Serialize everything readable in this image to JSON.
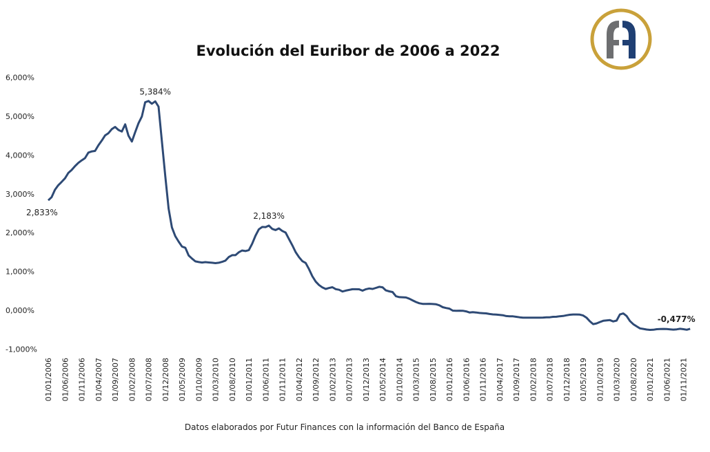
{
  "title": "Evolución del Euribor de 2006 a 2022",
  "source": "Datos elaborados por Futur Finances con la información del Banco de España",
  "logo": {
    "text": "FA",
    "colors": {
      "ring": "#c9a13a",
      "left": "#6d6e70",
      "right": "#1f3f73"
    }
  },
  "chart_data": {
    "type": "line",
    "title": "Evolución del Euribor de 2006 a 2022",
    "xlabel": "",
    "ylabel": "",
    "ylim": [
      -1,
      6
    ],
    "y_ticks": [
      "6,000%",
      "5,000%",
      "4,000%",
      "3,000%",
      "2,000%",
      "1,000%",
      "0,000%",
      "-1,000%"
    ],
    "x_ticks": [
      "01/01/2006",
      "01/06/2006",
      "01/11/2006",
      "01/04/2007",
      "01/09/2007",
      "01/02/2008",
      "01/07/2008",
      "01/12/2008",
      "01/05/2009",
      "01/10/2009",
      "01/03/2010",
      "01/08/2010",
      "01/01/2011",
      "01/06/2011",
      "01/11/2011",
      "01/04/2012",
      "01/09/2012",
      "01/02/2013",
      "01/07/2013",
      "01/12/2013",
      "01/05/2014",
      "01/10/2014",
      "01/03/2015",
      "01/08/2015",
      "01/01/2016",
      "01/06/2016",
      "01/11/2016",
      "01/04/2017",
      "01/09/2017",
      "01/02/2018",
      "01/07/2018",
      "01/12/2018",
      "01/05/2019",
      "01/10/2019",
      "01/03/2020",
      "01/08/2020",
      "01/01/2021",
      "01/06/2021",
      "01/11/2021"
    ],
    "x_start": "01/01/2006",
    "x_step": "monthly",
    "grid": false,
    "line_color": "#2e4a75",
    "values": [
      2.833,
      2.914,
      3.105,
      3.221,
      3.308,
      3.401,
      3.539,
      3.615,
      3.715,
      3.799,
      3.864,
      3.921,
      4.064,
      4.094,
      4.106,
      4.253,
      4.373,
      4.505,
      4.564,
      4.666,
      4.725,
      4.647,
      4.607,
      4.793,
      4.498,
      4.349,
      4.59,
      4.82,
      4.994,
      5.361,
      5.393,
      5.323,
      5.384,
      5.248,
      4.346,
      3.452,
      2.622,
      2.135,
      1.909,
      1.771,
      1.644,
      1.61,
      1.412,
      1.334,
      1.261,
      1.243,
      1.231,
      1.242,
      1.232,
      1.225,
      1.215,
      1.225,
      1.249,
      1.281,
      1.373,
      1.421,
      1.42,
      1.495,
      1.541,
      1.526,
      1.55,
      1.714,
      1.924,
      2.086,
      2.147,
      2.144,
      2.183,
      2.097,
      2.067,
      2.11,
      2.044,
      2.004,
      1.837,
      1.678,
      1.499,
      1.368,
      1.266,
      1.219,
      1.061,
      0.877,
      0.74,
      0.65,
      0.588,
      0.549,
      0.575,
      0.594,
      0.545,
      0.528,
      0.484,
      0.507,
      0.525,
      0.542,
      0.543,
      0.541,
      0.506,
      0.543,
      0.562,
      0.549,
      0.577,
      0.604,
      0.592,
      0.513,
      0.488,
      0.469,
      0.362,
      0.338,
      0.335,
      0.329,
      0.298,
      0.255,
      0.212,
      0.18,
      0.165,
      0.163,
      0.167,
      0.161,
      0.154,
      0.128,
      0.079,
      0.059,
      0.042,
      -0.008,
      -0.012,
      -0.01,
      -0.013,
      -0.028,
      -0.056,
      -0.048,
      -0.057,
      -0.069,
      -0.074,
      -0.08,
      -0.095,
      -0.106,
      -0.11,
      -0.119,
      -0.127,
      -0.149,
      -0.154,
      -0.156,
      -0.168,
      -0.18,
      -0.189,
      -0.19,
      -0.189,
      -0.191,
      -0.191,
      -0.19,
      -0.188,
      -0.181,
      -0.18,
      -0.169,
      -0.166,
      -0.154,
      -0.147,
      -0.129,
      -0.116,
      -0.108,
      -0.109,
      -0.112,
      -0.134,
      -0.19,
      -0.283,
      -0.356,
      -0.339,
      -0.304,
      -0.272,
      -0.261,
      -0.253,
      -0.288,
      -0.266,
      -0.108,
      -0.081,
      -0.147,
      -0.279,
      -0.359,
      -0.415,
      -0.466,
      -0.481,
      -0.497,
      -0.505,
      -0.501,
      -0.487,
      -0.484,
      -0.481,
      -0.484,
      -0.491,
      -0.498,
      -0.492,
      -0.477,
      -0.487,
      -0.502,
      -0.477
    ],
    "annotations": [
      {
        "text": "2,833%",
        "index": 0
      },
      {
        "text": "5,384%",
        "index": 32
      },
      {
        "text": "2,183%",
        "index": 66
      },
      {
        "text": "-0,477%",
        "index": 192,
        "bold": true
      }
    ]
  }
}
